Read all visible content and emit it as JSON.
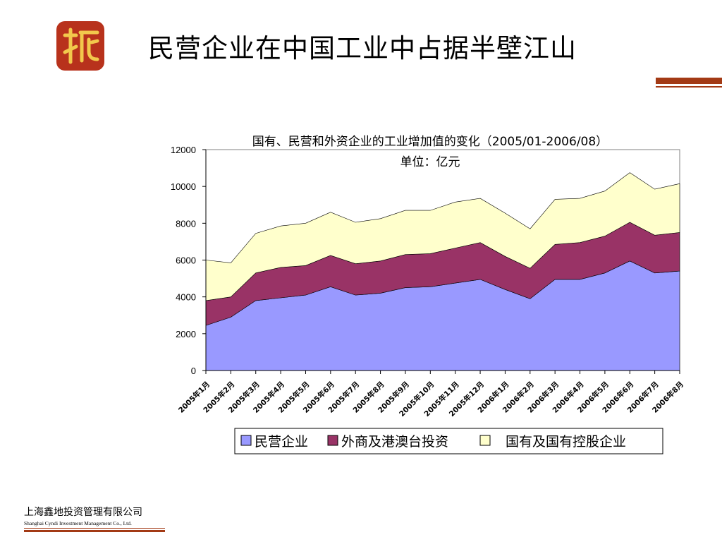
{
  "slide": {
    "title": "民营企业在中国工业中占据半壁江山",
    "company_cn": "上海鑫地投资管理有限公司",
    "company_en": "Shanghai Cyndi Investment Management Co., Ltd.",
    "logo_icon": "cyndi-seal-logo-icon",
    "accent_color": "#a33a15"
  },
  "chart_data": {
    "type": "area",
    "stacked": true,
    "title": "国有、民营和外资企业的工业增加值的变化（2005/01-2006/08）",
    "subtitle": "单位：亿元",
    "categories": [
      "2005年1月",
      "2005年2月",
      "2005年3月",
      "2005年4月",
      "2005年5月",
      "2005年6月",
      "2005年7月",
      "2005年8月",
      "2005年9月",
      "2005年10月",
      "2005年11月",
      "2005年12月",
      "2006年1月",
      "2006年2月",
      "2006年3月",
      "2006年4月",
      "2006年5月",
      "2006年6月",
      "2006年7月",
      "2006年8月"
    ],
    "series": [
      {
        "name": "民营企业",
        "color": "#9999ff",
        "values": [
          2450,
          2900,
          3800,
          3950,
          4100,
          4550,
          4100,
          4200,
          4500,
          4550,
          4750,
          4950,
          4400,
          3900,
          4950,
          4950,
          5300,
          5950,
          5300,
          5400
        ]
      },
      {
        "name": "外商及港澳台投资",
        "color": "#993366",
        "values": [
          1350,
          1100,
          1500,
          1650,
          1600,
          1700,
          1700,
          1750,
          1800,
          1800,
          1900,
          2000,
          1800,
          1650,
          1900,
          2000,
          2000,
          2100,
          2050,
          2100
        ]
      },
      {
        "name": "国有及国有控股企业",
        "color": "#ffffcc",
        "values": [
          2200,
          1850,
          2150,
          2250,
          2300,
          2350,
          2250,
          2300,
          2400,
          2350,
          2500,
          2400,
          2350,
          2150,
          2450,
          2400,
          2450,
          2700,
          2500,
          2650
        ]
      }
    ],
    "ylim": [
      0,
      12000
    ],
    "yticks": [
      0,
      2000,
      4000,
      6000,
      8000,
      10000,
      12000
    ],
    "grid": false,
    "legend_position": "bottom"
  }
}
